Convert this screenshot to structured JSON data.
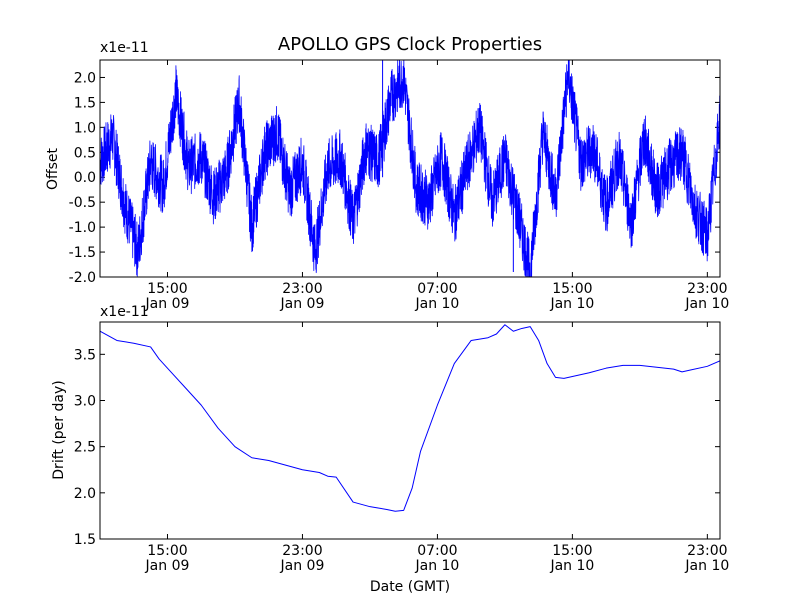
{
  "chart_data": [
    {
      "type": "line",
      "title": "APOLLO GPS Clock Properties",
      "ylabel": "Offset",
      "y_multiplier": "x1e-11",
      "ylim": [
        -2.0,
        2.35
      ],
      "y_ticks": [
        "-2.0",
        "-1.5",
        "-1.0",
        "-0.5",
        "0.0",
        "0.5",
        "1.0",
        "1.5",
        "2.0"
      ],
      "xlim": [
        "2009-01-09T11:00",
        "2009-01-10T23:45"
      ],
      "x_ticks": [
        {
          "time": "15:00",
          "date": "Jan 09"
        },
        {
          "time": "23:00",
          "date": "Jan 09"
        },
        {
          "time": "07:00",
          "date": "Jan 10"
        },
        {
          "time": "15:00",
          "date": "Jan 10"
        },
        {
          "time": "23:00",
          "date": "Jan 10"
        }
      ],
      "color": "#0000ff",
      "series": [
        {
          "x": [
            "2009-01-09T11:00",
            "2009-01-09T11:45",
            "2009-01-09T12:30",
            "2009-01-09T13:15",
            "2009-01-09T14:00",
            "2009-01-09T14:45",
            "2009-01-09T15:30",
            "2009-01-09T16:15",
            "2009-01-09T17:00",
            "2009-01-09T17:45",
            "2009-01-09T18:30",
            "2009-01-09T19:15",
            "2009-01-09T20:00",
            "2009-01-09T20:45",
            "2009-01-09T21:30",
            "2009-01-09T22:15",
            "2009-01-09T23:00",
            "2009-01-09T23:45",
            "2009-01-10T00:30",
            "2009-01-10T01:15",
            "2009-01-10T02:00",
            "2009-01-10T02:45",
            "2009-01-10T03:30",
            "2009-01-10T04:15",
            "2009-01-10T05:00",
            "2009-01-10T05:45",
            "2009-01-10T06:30",
            "2009-01-10T07:15",
            "2009-01-10T08:00",
            "2009-01-10T08:45",
            "2009-01-10T09:30",
            "2009-01-10T10:15",
            "2009-01-10T11:00",
            "2009-01-10T11:45",
            "2009-01-10T12:30",
            "2009-01-10T13:15",
            "2009-01-10T14:00",
            "2009-01-10T14:45",
            "2009-01-10T15:30",
            "2009-01-10T16:15",
            "2009-01-10T17:00",
            "2009-01-10T17:45",
            "2009-01-10T18:30",
            "2009-01-10T19:15",
            "2009-01-10T20:00",
            "2009-01-10T20:45",
            "2009-01-10T21:30",
            "2009-01-10T22:15",
            "2009-01-10T23:00",
            "2009-01-10T23:45"
          ],
          "values": [
            0.3,
            0.8,
            -0.6,
            -1.5,
            0.3,
            -0.2,
            1.7,
            0.2,
            0.4,
            -0.4,
            0.1,
            1.5,
            -1.0,
            0.5,
            0.9,
            -0.3,
            0.3,
            -1.5,
            0.2,
            0.4,
            -0.9,
            0.6,
            0.3,
            1.6,
            2.0,
            -0.2,
            -0.5,
            0.4,
            -0.8,
            0.2,
            1.0,
            -0.5,
            0.4,
            -0.7,
            -1.9,
            0.9,
            -0.4,
            2.1,
            0.3,
            0.6,
            -0.6,
            0.4,
            -0.9,
            0.8,
            -0.3,
            0.2,
            0.5,
            -0.6,
            -1.2,
            1.2
          ]
        }
      ],
      "spikes": [
        {
          "x": "2009-01-10T03:45",
          "value": 2.35
        },
        {
          "x": "2009-01-10T11:30",
          "value": -1.9
        }
      ]
    },
    {
      "type": "line",
      "ylabel": "Drift (per day)",
      "xlabel": "Date (GMT)",
      "y_multiplier": "x1e-11",
      "ylim": [
        1.5,
        3.85
      ],
      "y_ticks": [
        "1.5",
        "2.0",
        "2.5",
        "3.0",
        "3.5"
      ],
      "xlim": [
        "2009-01-09T11:00",
        "2009-01-10T23:45"
      ],
      "x_ticks": [
        {
          "time": "15:00",
          "date": "Jan 09"
        },
        {
          "time": "23:00",
          "date": "Jan 09"
        },
        {
          "time": "07:00",
          "date": "Jan 10"
        },
        {
          "time": "15:00",
          "date": "Jan 10"
        },
        {
          "time": "23:00",
          "date": "Jan 10"
        }
      ],
      "color": "#0000ff",
      "series": [
        {
          "x": [
            "2009-01-09T11:00",
            "2009-01-09T11:30",
            "2009-01-09T12:00",
            "2009-01-09T13:00",
            "2009-01-09T14:00",
            "2009-01-09T14:30",
            "2009-01-09T15:00",
            "2009-01-09T16:00",
            "2009-01-09T17:00",
            "2009-01-09T18:00",
            "2009-01-09T19:00",
            "2009-01-09T20:00",
            "2009-01-09T21:00",
            "2009-01-09T22:00",
            "2009-01-09T23:00",
            "2009-01-10T00:00",
            "2009-01-10T00:30",
            "2009-01-10T01:00",
            "2009-01-10T02:00",
            "2009-01-10T03:00",
            "2009-01-10T04:00",
            "2009-01-10T04:30",
            "2009-01-10T05:00",
            "2009-01-10T05:30",
            "2009-01-10T06:00",
            "2009-01-10T07:00",
            "2009-01-10T08:00",
            "2009-01-10T09:00",
            "2009-01-10T10:00",
            "2009-01-10T10:30",
            "2009-01-10T11:00",
            "2009-01-10T11:30",
            "2009-01-10T12:00",
            "2009-01-10T12:30",
            "2009-01-10T13:00",
            "2009-01-10T13:30",
            "2009-01-10T14:00",
            "2009-01-10T14:30",
            "2009-01-10T15:00",
            "2009-01-10T16:00",
            "2009-01-10T17:00",
            "2009-01-10T18:00",
            "2009-01-10T19:00",
            "2009-01-10T20:00",
            "2009-01-10T21:00",
            "2009-01-10T21:30",
            "2009-01-10T22:00",
            "2009-01-10T23:00",
            "2009-01-10T23:45"
          ],
          "values": [
            3.75,
            3.7,
            3.65,
            3.62,
            3.58,
            3.45,
            3.35,
            3.15,
            2.95,
            2.7,
            2.5,
            2.38,
            2.35,
            2.3,
            2.25,
            2.22,
            2.18,
            2.17,
            1.9,
            1.85,
            1.82,
            1.8,
            1.81,
            2.05,
            2.45,
            2.95,
            3.4,
            3.65,
            3.68,
            3.72,
            3.82,
            3.75,
            3.78,
            3.8,
            3.65,
            3.4,
            3.25,
            3.24,
            3.26,
            3.3,
            3.35,
            3.38,
            3.38,
            3.36,
            3.34,
            3.31,
            3.33,
            3.37,
            3.43
          ]
        }
      ]
    }
  ]
}
